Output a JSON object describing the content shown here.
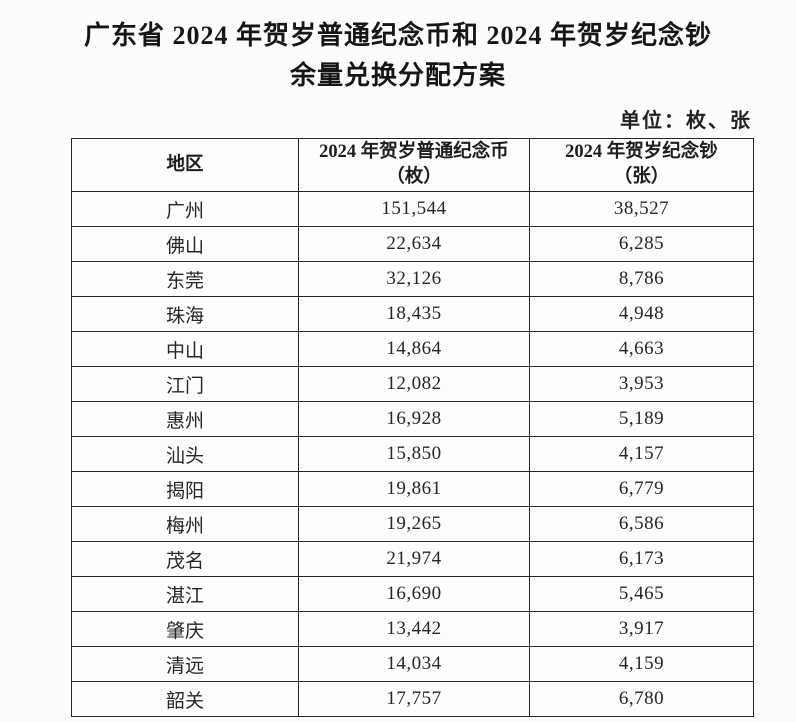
{
  "page": {
    "title_line1": "广东省 2024 年贺岁普通纪念币和 2024 年贺岁纪念钞",
    "title_line2": "余量兑换分配方案",
    "unit_note": "单位：枚、张"
  },
  "table": {
    "columns": [
      {
        "label": "地区",
        "unit": ""
      },
      {
        "label": "2024 年贺岁普通纪念币",
        "unit": "（枚）"
      },
      {
        "label": "2024 年贺岁纪念钞",
        "unit": "（张）"
      }
    ],
    "rows": [
      {
        "region": "广州",
        "coins": "151,544",
        "notes": "38,527"
      },
      {
        "region": "佛山",
        "coins": "22,634",
        "notes": "6,285"
      },
      {
        "region": "东莞",
        "coins": "32,126",
        "notes": "8,786"
      },
      {
        "region": "珠海",
        "coins": "18,435",
        "notes": "4,948"
      },
      {
        "region": "中山",
        "coins": "14,864",
        "notes": "4,663"
      },
      {
        "region": "江门",
        "coins": "12,082",
        "notes": "3,953"
      },
      {
        "region": "惠州",
        "coins": "16,928",
        "notes": "5,189"
      },
      {
        "region": "汕头",
        "coins": "15,850",
        "notes": "4,157"
      },
      {
        "region": "揭阳",
        "coins": "19,861",
        "notes": "6,779"
      },
      {
        "region": "梅州",
        "coins": "19,265",
        "notes": "6,586"
      },
      {
        "region": "茂名",
        "coins": "21,974",
        "notes": "6,173"
      },
      {
        "region": "湛江",
        "coins": "16,690",
        "notes": "5,465"
      },
      {
        "region": "肇庆",
        "coins": "13,442",
        "notes": "3,917"
      },
      {
        "region": "清远",
        "coins": "14,034",
        "notes": "4,159"
      },
      {
        "region": "韶关",
        "coins": "17,757",
        "notes": "6,780"
      }
    ]
  },
  "chart_data": {
    "type": "table",
    "title": "广东省 2024 年贺岁普通纪念币和 2024 年贺岁纪念钞余量兑换分配方案",
    "unit": "单位：枚、张",
    "categories": [
      "广州",
      "佛山",
      "东莞",
      "珠海",
      "中山",
      "江门",
      "惠州",
      "汕头",
      "揭阳",
      "梅州",
      "茂名",
      "湛江",
      "肇庆",
      "清远",
      "韶关"
    ],
    "series": [
      {
        "name": "2024年贺岁普通纪念币（枚）",
        "values": [
          151544,
          22634,
          32126,
          18435,
          14864,
          12082,
          16928,
          15850,
          19861,
          19265,
          21974,
          16690,
          13442,
          14034,
          17757
        ]
      },
      {
        "name": "2024年贺岁纪念钞（张）",
        "values": [
          38527,
          6285,
          8786,
          4948,
          4663,
          3953,
          5189,
          4157,
          6779,
          6586,
          6173,
          5465,
          3917,
          4159,
          6780
        ]
      }
    ]
  }
}
